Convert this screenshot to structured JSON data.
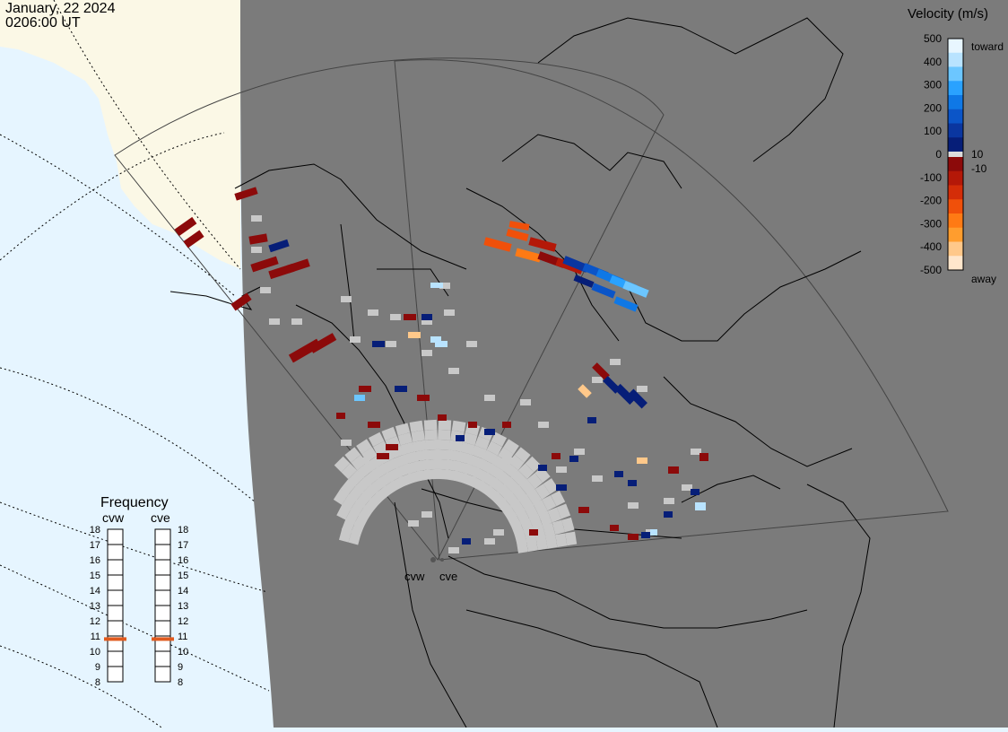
{
  "header": {
    "date": "January, 22 2024",
    "time": "0206:00 UT"
  },
  "colors": {
    "ocean": "#e6f5ff",
    "night_land": "#7b7b7b",
    "day_land": "#fbf8e6",
    "ground_scatter": "#c8c8c8"
  },
  "velocity_scale": {
    "title": "Velocity (m/s)",
    "ticks": [
      "500",
      "400",
      "300",
      "200",
      "100",
      "0",
      "-100",
      "-200",
      "-300",
      "-400",
      "-500"
    ],
    "label_toward": "toward",
    "label_away": "away",
    "label_pos_thresh": "10",
    "label_neg_thresh": "-10",
    "colors_toward": [
      "#e8f6ff",
      "#b9e3ff",
      "#6cc6ff",
      "#2aa2ff",
      "#0f78e6",
      "#0b55c8",
      "#0a36a0",
      "#061e78"
    ],
    "colors_away": [
      "#ffe6cc",
      "#ffc88a",
      "#ff9d2e",
      "#ff7a14",
      "#f0500a",
      "#d42d08",
      "#b41808",
      "#8c0a0a"
    ]
  },
  "frequency_panel": {
    "title": "Frequency",
    "radar_left": "cvw",
    "radar_right": "cve",
    "levels": [
      "18",
      "17",
      "16",
      "15",
      "14",
      "13",
      "12",
      "11",
      "10",
      "9",
      "8"
    ],
    "value_cvw_mhz": 10.8,
    "value_cve_mhz": 10.8
  },
  "radars": {
    "cvw_label": "cvw",
    "cve_label": "cve"
  }
}
